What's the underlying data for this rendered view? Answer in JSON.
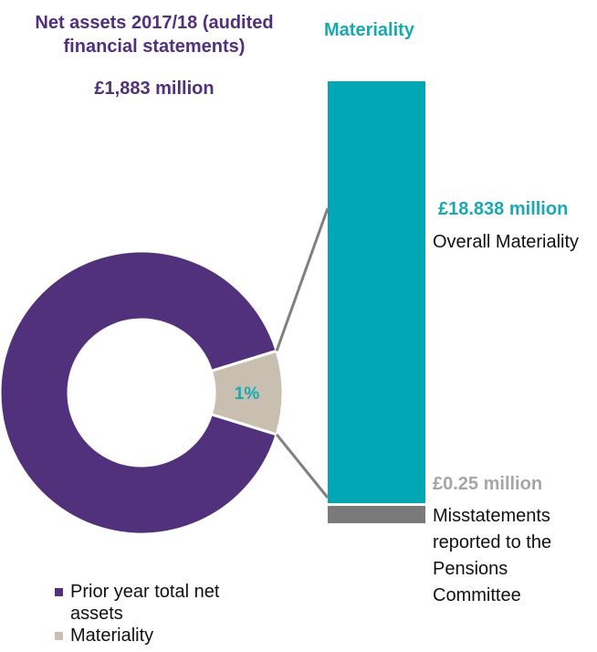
{
  "chart_data": {
    "type": "pie",
    "donut": {
      "title": "Net assets 2017/18 (audited financial statements)",
      "total_label": "£1,883 million",
      "slices": [
        {
          "name": "Prior year total net assets",
          "value": 99,
          "color": "#51307c"
        },
        {
          "name": "Materiality",
          "value": 1,
          "color": "#c8bfb0",
          "label": "1%",
          "label_color": "#1aa8b3"
        }
      ]
    },
    "bar": {
      "title": "Materiality",
      "segments": [
        {
          "value": 18.838,
          "value_label": "£18.838 million",
          "description": "Overall Materiality",
          "color": "#00a7b4",
          "label_color": "#1aa8b3"
        },
        {
          "value": 0.25,
          "value_label": "£0.25 million",
          "description": "Misstatements reported to the Pensions Committee",
          "color": "#7a7a7a",
          "label_color": "#a6a6a6"
        }
      ]
    },
    "legend": {
      "placement": "bottom-left",
      "entries": [
        {
          "label": "Prior year total net assets",
          "color": "#51307c"
        },
        {
          "label": "Materiality",
          "color": "#c8bfb0"
        }
      ]
    }
  }
}
